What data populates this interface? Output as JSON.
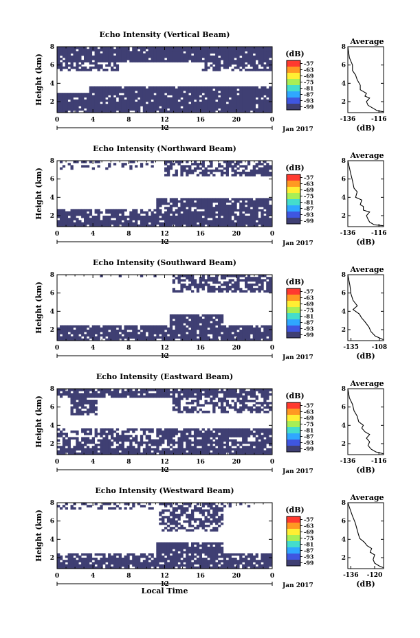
{
  "colorbar": {
    "unit_label": "(dB)",
    "levels": [
      "-57",
      "-63",
      "-69",
      "-75",
      "-81",
      "-87",
      "-93",
      "-99"
    ],
    "colors": [
      "#ff3a2f",
      "#ff9922",
      "#ffee33",
      "#a8ee55",
      "#44ddcc",
      "#2fa7ff",
      "#3f56e0",
      "#3f3f73"
    ]
  },
  "x_axis": {
    "ticks": [
      "0",
      "4",
      "8",
      "12",
      "16",
      "20",
      "0"
    ],
    "date_marker": "12",
    "month_label": "Jan 2017",
    "xlabel": "Local Time"
  },
  "y_axis": {
    "label": "Height (km)",
    "ticks": [
      "2",
      "4",
      "6",
      "8"
    ]
  },
  "chart_data": [
    {
      "type": "heatmap",
      "title": "Echo Intensity (Vertical Beam)",
      "xlabel": "",
      "ylabel": "Height (km)",
      "xlim": [
        0,
        24
      ],
      "ylim": [
        0.8,
        8
      ],
      "echo_color": "#3f3f73",
      "regions": [
        {
          "t0": 0,
          "t1": 24,
          "h0": 0.8,
          "h1": 1.8,
          "density": 0.92
        },
        {
          "t0": 0,
          "t1": 24,
          "h0": 1.8,
          "h1": 3.0,
          "density": 0.9
        },
        {
          "t0": 3.5,
          "t1": 24,
          "h0": 3.0,
          "h1": 3.8,
          "density": 0.95
        },
        {
          "t0": 0,
          "t1": 24,
          "h0": 6.3,
          "h1": 8.0,
          "density": 0.93
        },
        {
          "t0": 0,
          "t1": 7,
          "h0": 5.4,
          "h1": 6.3,
          "density": 0.55
        },
        {
          "t0": 16,
          "t1": 24,
          "h0": 5.4,
          "h1": 6.3,
          "density": 0.6
        }
      ]
    },
    {
      "type": "line",
      "title": "Average",
      "xlabel": "(dB)",
      "ylabel": "",
      "xlim": [
        -136,
        -113
      ],
      "ylim": [
        0.8,
        8
      ],
      "xticks": [
        "-136",
        "-116"
      ],
      "yticks": [
        "2",
        "4",
        "6",
        "8"
      ],
      "points": [
        [
          -113,
          0.9
        ],
        [
          -117,
          1.0
        ],
        [
          -120,
          1.3
        ],
        [
          -123,
          1.6
        ],
        [
          -124,
          2.0
        ],
        [
          -122,
          2.4
        ],
        [
          -125,
          2.6
        ],
        [
          -124,
          2.9
        ],
        [
          -126,
          3.1
        ],
        [
          -128,
          3.3
        ],
        [
          -128,
          3.8
        ],
        [
          -130,
          4.4
        ],
        [
          -131,
          4.9
        ],
        [
          -133,
          5.4
        ],
        [
          -133,
          6.0
        ],
        [
          -135,
          6.8
        ],
        [
          -136,
          8.0
        ]
      ]
    },
    {
      "type": "heatmap",
      "title": "Echo Intensity (Northward Beam)",
      "xlabel": "",
      "ylabel": "Height (km)",
      "xlim": [
        0,
        24
      ],
      "ylim": [
        0.8,
        8
      ],
      "echo_color": "#3f3f73",
      "regions": [
        {
          "t0": 0,
          "t1": 24,
          "h0": 0.8,
          "h1": 2.0,
          "density": 0.9
        },
        {
          "t0": 0,
          "t1": 4,
          "h0": 2.0,
          "h1": 2.7,
          "density": 0.88
        },
        {
          "t0": 4,
          "t1": 11,
          "h0": 2.0,
          "h1": 2.8,
          "density": 0.6
        },
        {
          "t0": 11,
          "t1": 24,
          "h0": 2.0,
          "h1": 3.9,
          "density": 0.85
        },
        {
          "t0": 0,
          "t1": 11,
          "h0": 7.0,
          "h1": 8.0,
          "density": 0.25
        },
        {
          "t0": 12,
          "t1": 24,
          "h0": 6.3,
          "h1": 8.0,
          "density": 0.6
        }
      ]
    },
    {
      "type": "line",
      "title": "Average",
      "xlabel": "(dB)",
      "ylabel": "",
      "xlim": [
        -136,
        -113
      ],
      "ylim": [
        0.8,
        8
      ],
      "xticks": [
        "-136",
        "-116"
      ],
      "yticks": [
        "2",
        "4",
        "6",
        "8"
      ],
      "points": [
        [
          -113,
          0.9
        ],
        [
          -119,
          1.0
        ],
        [
          -122,
          1.3
        ],
        [
          -123,
          1.6
        ],
        [
          -124,
          2.0
        ],
        [
          -122,
          2.4
        ],
        [
          -126,
          2.6
        ],
        [
          -126,
          3.0
        ],
        [
          -128,
          3.2
        ],
        [
          -127,
          3.7
        ],
        [
          -131,
          4.0
        ],
        [
          -130,
          4.6
        ],
        [
          -132,
          5.0
        ],
        [
          -133,
          5.8
        ],
        [
          -134,
          6.5
        ],
        [
          -136,
          8.0
        ]
      ]
    },
    {
      "type": "heatmap",
      "title": "Echo Intensity (Southward Beam)",
      "xlabel": "",
      "ylabel": "Height (km)",
      "xlim": [
        0,
        24
      ],
      "ylim": [
        0.8,
        8
      ],
      "echo_color": "#3f3f73",
      "regions": [
        {
          "t0": 0,
          "t1": 24,
          "h0": 0.8,
          "h1": 2.6,
          "density": 0.85
        },
        {
          "t0": 12.5,
          "t1": 18.5,
          "h0": 2.6,
          "h1": 3.8,
          "density": 0.9
        },
        {
          "t0": 13,
          "t1": 24,
          "h0": 6.0,
          "h1": 8.0,
          "density": 0.65
        },
        {
          "t0": 0,
          "t1": 13,
          "h0": 7.5,
          "h1": 8.0,
          "density": 0.12
        }
      ]
    },
    {
      "type": "line",
      "title": "Average",
      "xlabel": "(dB)",
      "ylabel": "",
      "xlim": [
        -138,
        -104
      ],
      "ylim": [
        0.8,
        8
      ],
      "xticks": [
        "-135",
        "-108"
      ],
      "yticks": [
        "2",
        "4",
        "6",
        "8"
      ],
      "points": [
        [
          -104,
          0.9
        ],
        [
          -112,
          1.3
        ],
        [
          -116,
          1.8
        ],
        [
          -118,
          2.3
        ],
        [
          -122,
          2.9
        ],
        [
          -125,
          3.3
        ],
        [
          -127,
          3.7
        ],
        [
          -133,
          4.2
        ],
        [
          -129,
          4.6
        ],
        [
          -133,
          5.2
        ],
        [
          -135,
          5.9
        ],
        [
          -136,
          6.8
        ],
        [
          -138,
          8.0
        ]
      ]
    },
    {
      "type": "heatmap",
      "title": "Echo Intensity (Eastward Beam)",
      "xlabel": "",
      "ylabel": "Height (km)",
      "xlim": [
        0,
        24
      ],
      "ylim": [
        0.8,
        8
      ],
      "echo_color": "#3f3f73",
      "regions": [
        {
          "t0": 0,
          "t1": 24,
          "h0": 0.8,
          "h1": 1.6,
          "density": 0.92
        },
        {
          "t0": 0,
          "t1": 24,
          "h0": 1.6,
          "h1": 2.8,
          "density": 0.7
        },
        {
          "t0": 11,
          "t1": 24,
          "h0": 2.8,
          "h1": 3.8,
          "density": 0.9
        },
        {
          "t0": 0,
          "t1": 11,
          "h0": 2.8,
          "h1": 3.6,
          "density": 0.55
        },
        {
          "t0": 0,
          "t1": 24,
          "h0": 7.0,
          "h1": 8.0,
          "density": 0.8
        },
        {
          "t0": 1.5,
          "t1": 4.5,
          "h0": 5.2,
          "h1": 7.0,
          "density": 0.7
        },
        {
          "t0": 13,
          "t1": 24,
          "h0": 5.4,
          "h1": 7.0,
          "density": 0.6
        }
      ]
    },
    {
      "type": "line",
      "title": "Average",
      "xlabel": "(dB)",
      "ylabel": "",
      "xlim": [
        -136,
        -113
      ],
      "ylim": [
        0.8,
        8
      ],
      "xticks": [
        "-136",
        "-116"
      ],
      "yticks": [
        "2",
        "4",
        "6",
        "8"
      ],
      "points": [
        [
          -113,
          0.9
        ],
        [
          -118,
          1.1
        ],
        [
          -121,
          1.4
        ],
        [
          -123,
          1.8
        ],
        [
          -122,
          2.2
        ],
        [
          -124,
          2.6
        ],
        [
          -122,
          3.0
        ],
        [
          -125,
          3.3
        ],
        [
          -127,
          3.7
        ],
        [
          -126,
          4.0
        ],
        [
          -129,
          4.4
        ],
        [
          -130,
          5.0
        ],
        [
          -132,
          5.6
        ],
        [
          -133,
          6.3
        ],
        [
          -135,
          7.0
        ],
        [
          -136,
          8.0
        ]
      ]
    },
    {
      "type": "heatmap",
      "title": "Echo Intensity (Westward Beam)",
      "xlabel": "Local Time",
      "ylabel": "Height (km)",
      "xlim": [
        0,
        24
      ],
      "ylim": [
        0.8,
        8
      ],
      "echo_color": "#3f3f73",
      "regions": [
        {
          "t0": 0,
          "t1": 24,
          "h0": 0.8,
          "h1": 1.8,
          "density": 0.9
        },
        {
          "t0": 0,
          "t1": 24,
          "h0": 1.8,
          "h1": 2.6,
          "density": 0.75
        },
        {
          "t0": 11,
          "t1": 18.5,
          "h0": 2.6,
          "h1": 3.8,
          "density": 0.88
        },
        {
          "t0": 11.5,
          "t1": 18.5,
          "h0": 5.0,
          "h1": 8.0,
          "density": 0.6
        },
        {
          "t0": 0,
          "t1": 11,
          "h0": 7.3,
          "h1": 8.0,
          "density": 0.3
        },
        {
          "t0": 18.5,
          "t1": 24,
          "h0": 7.3,
          "h1": 8.0,
          "density": 0.2
        }
      ]
    },
    {
      "type": "line",
      "title": "Average",
      "xlabel": "(dB)",
      "ylabel": "",
      "xlim": [
        -138,
        -114
      ],
      "ylim": [
        0.8,
        8
      ],
      "xticks": [
        "-136",
        "-120"
      ],
      "yticks": [
        "2",
        "4",
        "6",
        "8"
      ],
      "points": [
        [
          -114,
          0.9
        ],
        [
          -117,
          1.1
        ],
        [
          -120,
          1.4
        ],
        [
          -121,
          1.8
        ],
        [
          -120,
          2.3
        ],
        [
          -123,
          2.6
        ],
        [
          -122,
          3.0
        ],
        [
          -125,
          3.3
        ],
        [
          -127,
          3.7
        ],
        [
          -130,
          4.1
        ],
        [
          -131,
          4.6
        ],
        [
          -132,
          5.2
        ],
        [
          -133,
          5.8
        ],
        [
          -135,
          6.6
        ],
        [
          -138,
          8.0
        ]
      ]
    }
  ]
}
